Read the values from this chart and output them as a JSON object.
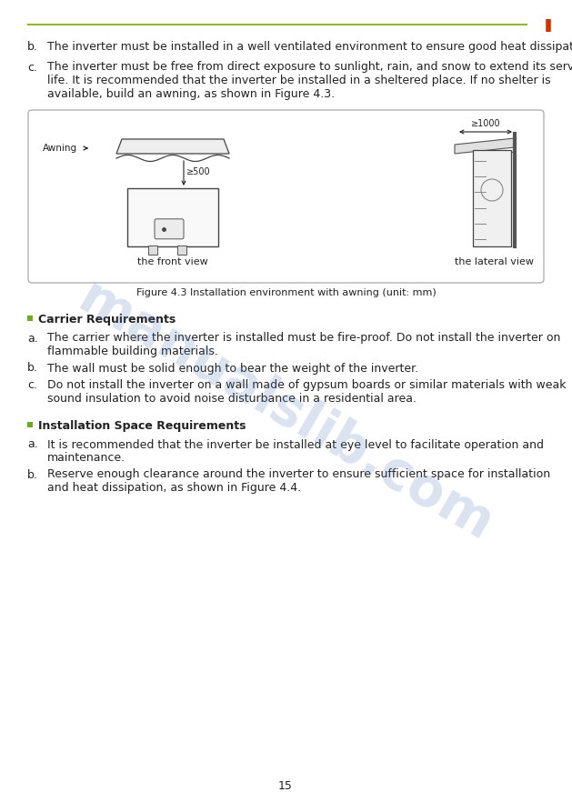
{
  "page_number": "15",
  "header_line_color": "#8db832",
  "header_accent_color": "#cc3300",
  "text_color": "#222222",
  "watermark_text": "manualslib.com",
  "watermark_color": "#6080bb",
  "watermark_alpha": 0.22,
  "bullet_color": "#6aaa20",
  "figure_caption": "Figure 4.3 Installation environment with awning (unit: mm)",
  "section1_heading": "Carrier Requirements",
  "section1_items": [
    [
      "a.",
      "The carrier where the inverter is installed must be fire-proof. Do not install the inverter on flammable building materials."
    ],
    [
      "b.",
      "The wall must be solid enough to bear the weight of the inverter."
    ],
    [
      "c.",
      "Do not install the inverter on a wall made of gypsum boards or similar materials with weak sound insulation to avoid noise disturbance in a residential area."
    ]
  ],
  "section2_heading": "Installation Space Requirements",
  "section2_items": [
    [
      "a.",
      "It is recommended that the inverter be installed at eye level to facilitate operation and maintenance."
    ],
    [
      "b.",
      "Reserve enough clearance around the inverter to ensure sufficient space for installation and heat dissipation, as shown in Figure 4.4."
    ]
  ],
  "intro_items": [
    [
      "b.",
      "The inverter must be installed in a well ventilated environment to ensure good heat dissipation."
    ],
    [
      "c.",
      "The inverter must be free from direct exposure to sunlight, rain, and snow to extend its service life. It is recommended that the inverter be installed in a sheltered place. If no shelter is available, build an awning, as shown in Figure 4.3."
    ]
  ]
}
